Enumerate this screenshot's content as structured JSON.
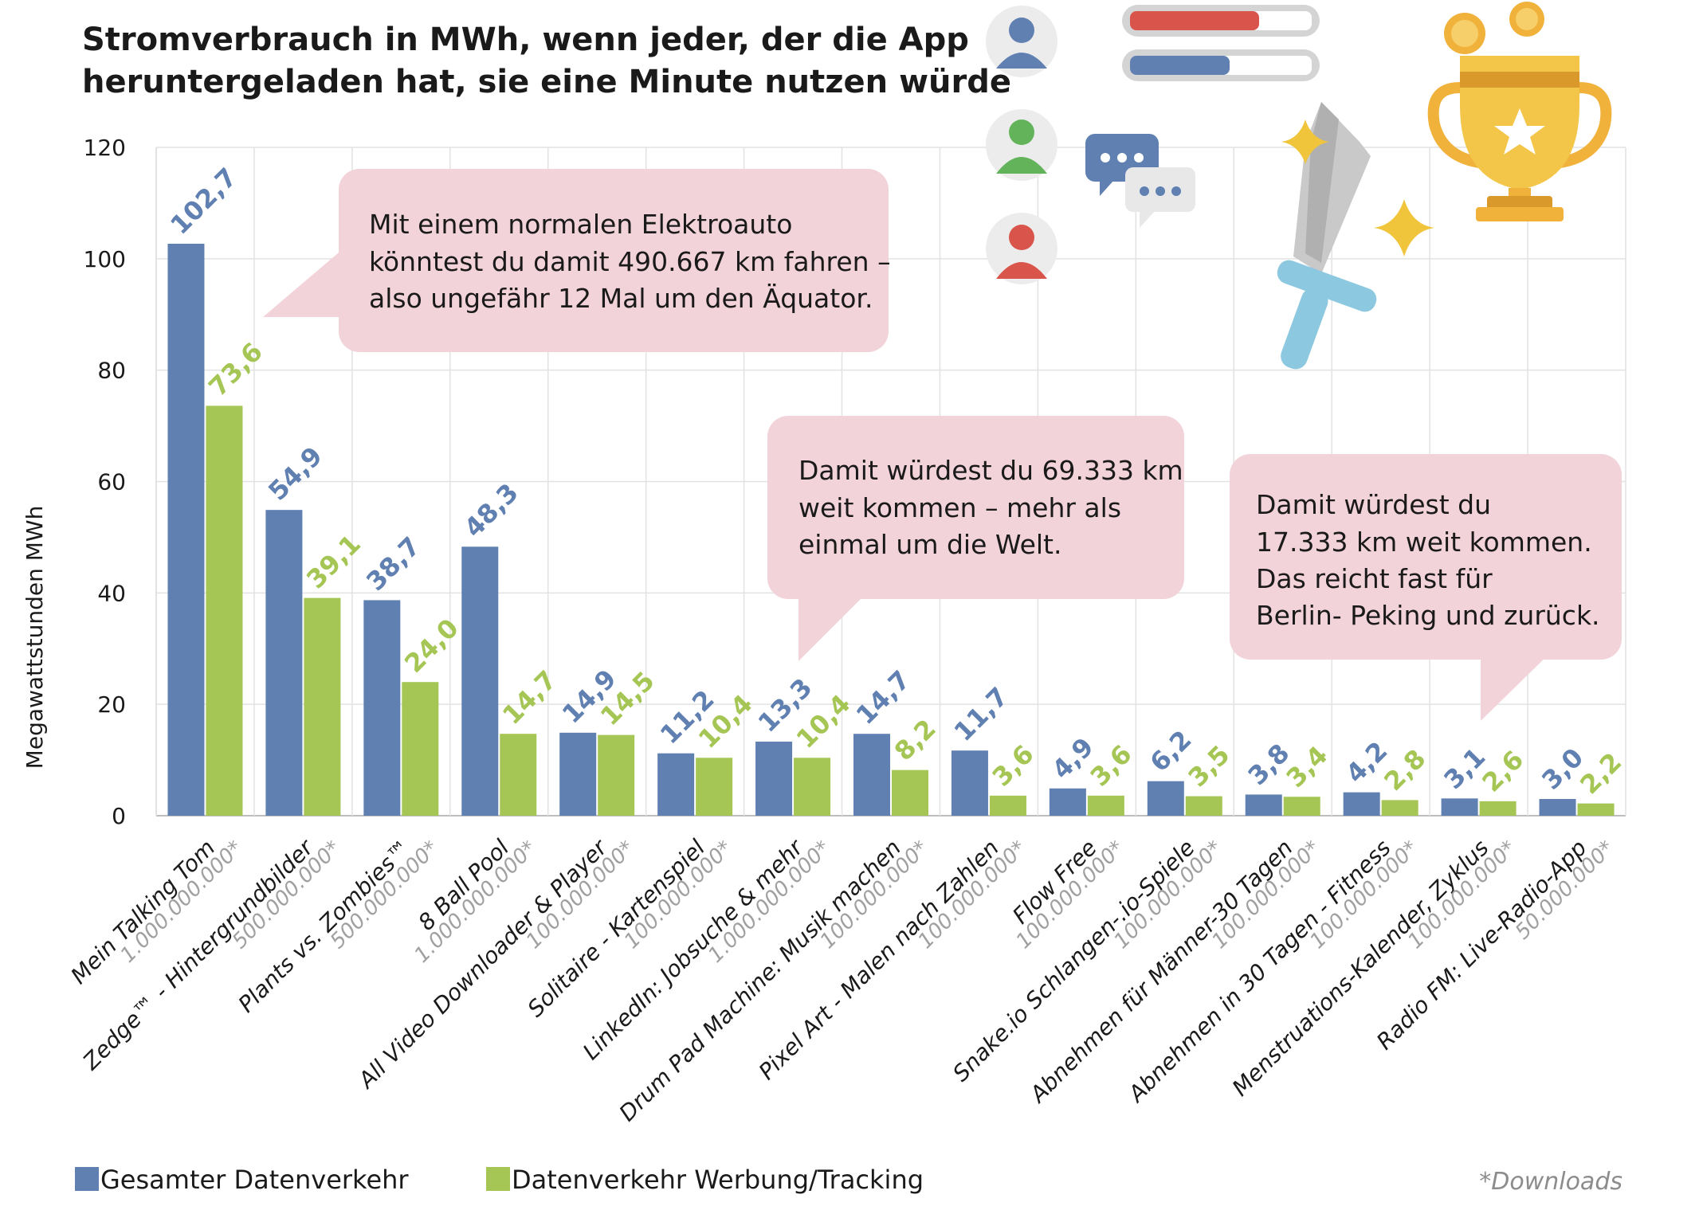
{
  "chart_data": {
    "type": "bar",
    "title": "Stromverbrauch in MWh, wenn jeder, der die App heruntergeladen hat, sie eine Minute nutzen würde",
    "title_lines": [
      "Stromverbrauch in MWh, wenn jeder, der die App",
      "heruntergeladen hat, sie eine Minute nutzen würde"
    ],
    "ylabel": "Megawattstunden MWh",
    "ylim": [
      0,
      120
    ],
    "yticks": [
      "0",
      "20",
      "40",
      "60",
      "80",
      "100",
      "120"
    ],
    "grid": true,
    "categories": [
      "Mein Talking Tom",
      "Zedge™ - Hintergrundbilder",
      "Plants vs. Zombies™",
      "8 Ball Pool",
      "All Video Downloader & Player",
      "Solitaire - Kartenspiel",
      "LinkedIn: Jobsuche & mehr",
      "Drum Pad Machine: Musik machen",
      "Pixel Art - Malen nach Zahlen",
      "Flow Free",
      "Snake.io Schlangen-.io-Spiele",
      "Abnehmen für Männer-30 Tagen",
      "Abnehmen in 30 Tagen - Fitness",
      "Menstruations-Kalender, Zyklus",
      "Radio FM: Live-Radio-App"
    ],
    "downloads": [
      "1.000.000.000*",
      "500.000.000*",
      "500.000.000*",
      "1.000.000.000*",
      "100.000.000*",
      "100.000.000*",
      "1.000.000.000*",
      "100.000.000*",
      "100.000.000*",
      "100.000.000*",
      "100.000.000*",
      "100.000.000*",
      "100.000.000*",
      "100.000.000*",
      "50.000.000*"
    ],
    "series": [
      {
        "name": "Gesamter Datenverkehr",
        "color": "#6080b2",
        "values": [
          102.7,
          54.9,
          38.7,
          48.3,
          14.9,
          11.2,
          13.3,
          14.7,
          11.7,
          4.9,
          6.2,
          3.8,
          4.2,
          3.1,
          3.0
        ],
        "labels": [
          "102,7",
          "54,9",
          "38,7",
          "48,3",
          "14,9",
          "11,2",
          "13,3",
          "14,7",
          "11,7",
          "4,9",
          "6,2",
          "3,8",
          "4,2",
          "3,1",
          "3,0"
        ]
      },
      {
        "name": "Datenverkehr Werbung/Tracking",
        "color": "#a5c654",
        "values": [
          73.6,
          39.1,
          24.0,
          14.7,
          14.5,
          10.4,
          10.4,
          8.2,
          3.6,
          3.6,
          3.5,
          3.4,
          2.8,
          2.6,
          2.2
        ],
        "labels": [
          "73,6",
          "39,1",
          "24,0",
          "14,7",
          "14,5",
          "10,4",
          "10,4",
          "8,2",
          "3,6",
          "3,6",
          "3,5",
          "3,4",
          "2,8",
          "2,6",
          "2,2"
        ]
      }
    ],
    "legend_position": "bottom-left",
    "footnote": "*Downloads",
    "annotations": [
      {
        "lines": [
          "Mit einem normalen Elektroauto",
          "könntest du damit 490.667 km fahren –",
          "also ungefähr 12 Mal um den Äquator."
        ]
      },
      {
        "lines": [
          "Damit würdest du 69.333 km",
          "weit kommen – mehr als",
          "einmal um die Welt."
        ]
      },
      {
        "lines": [
          "Damit würdest du",
          "17.333 km weit kommen.",
          "Das reicht fast für",
          "Berlin- Peking und zurück."
        ]
      }
    ]
  },
  "decorations": {
    "callout_color": "#f2d3d9",
    "icons": [
      "user-avatar-blue-icon",
      "user-avatar-green-icon",
      "user-avatar-red-icon",
      "progress-bars-icon",
      "chat-bubbles-icon",
      "sword-icon",
      "sparkle-icon",
      "trophy-icon",
      "coin-icon"
    ]
  }
}
